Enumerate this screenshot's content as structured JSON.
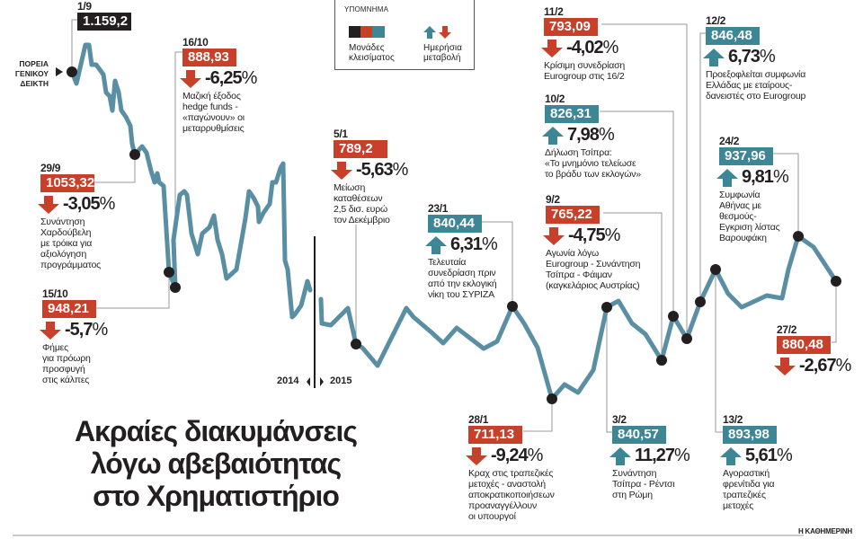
{
  "title": [
    "Ακραίες διακυμάνσεις",
    "λόγω αβεβαιότητας",
    "στο Χρηματιστήριο"
  ],
  "index_label": [
    "ΠΟΡΕΙΑ",
    "ΓΕΝΙΚΟΥ",
    "ΔΕΙΚΤΗ"
  ],
  "legend": {
    "heading": "ΥΠΟΜΝΗΜΑ",
    "units_label": [
      "Μονάδες",
      "κλεισίματος"
    ],
    "change_label": [
      "Ημερήσια",
      "μεταβολή"
    ],
    "swatches": [
      "#231f20",
      "#c8402a",
      "#3c8696"
    ]
  },
  "year_labels": {
    "left": "2014",
    "right": "2015"
  },
  "brand": "Η ΚΑΘΗΜΕΡΙΝΗ",
  "colors": {
    "up": "#3c8696",
    "down": "#c8402a",
    "neutral": "#231f20",
    "line": "#5a8fa3"
  },
  "chart_data": {
    "type": "line",
    "title": "Ακραίες διακυμάνσεις λόγω αβεβαιότητας στο Χρηματιστήριο",
    "series_label": "ΠΟΡΕΙΑ ΓΕΝΙΚΟΥ ΔΕΙΚΤΗ",
    "x_range": [
      "1/9/2014",
      "27/2/2015"
    ],
    "axes_shown": false,
    "grid": false,
    "annotations": [
      {
        "date": "1/9",
        "value": "1.159,2",
        "change": null,
        "direction": "neutral",
        "text": []
      },
      {
        "date": "29/9",
        "value": "1053,32",
        "change": "-3,05",
        "direction": "down",
        "text": [
          "Συνάντηση",
          "Χαρδούβελη",
          "με τρόικα για",
          "αξιολόγηση",
          "προγράμματος"
        ]
      },
      {
        "date": "15/10",
        "value": "948,21",
        "change": "-5,7",
        "direction": "down",
        "text": [
          "Φήμες",
          "για πρόωρη",
          "προσφυγή",
          "στις κάλπες"
        ]
      },
      {
        "date": "16/10",
        "value": "888,93",
        "change": "-6,25",
        "direction": "down",
        "text": [
          "Μαζική έξοδος",
          "hedge funds -",
          "«παγώνουν» οι",
          "μεταρρυθμίσεις"
        ]
      },
      {
        "date": "5/1",
        "value": "789,2",
        "change": "-5,63",
        "direction": "down",
        "text": [
          "Μείωση",
          "καταθέσεων",
          "2,5 δισ. ευρώ",
          "τον Δεκέμβριο"
        ]
      },
      {
        "date": "23/1",
        "value": "840,44",
        "change": "6,31",
        "direction": "up",
        "text": [
          "Τελευταία",
          "συνεδρίαση πριν",
          "από την εκλογική",
          "νίκη του ΣΥΡΙΖΑ"
        ]
      },
      {
        "date": "28/1",
        "value": "711,13",
        "change": "-9,24",
        "direction": "down",
        "text": [
          "Κραχ στις τραπεζικές",
          "μετοχές - αναστολή",
          "αποκρατικοποιήσεων",
          "προαναγγέλλουν",
          "οι υπουργοί"
        ]
      },
      {
        "date": "3/2",
        "value": "840,57",
        "change": "11,27",
        "direction": "up",
        "text": [
          "Συνάντηση",
          "Τσίπρα - Ρέντσι",
          "στη Ρώμη"
        ]
      },
      {
        "date": "9/2",
        "value": "765,22",
        "change": "-4,75",
        "direction": "down",
        "text": [
          "Αγωνία λόγω",
          "Eurogroup - Συνάντηση",
          "Τσίπρα - Φάιμαν",
          "(καγκελάριος Αυστρίας)"
        ]
      },
      {
        "date": "10/2",
        "value": "826,31",
        "change": "7,98",
        "direction": "up",
        "text": [
          "Δήλωση Τσίπρα:",
          "«Το μνημόνιο τελείωσε",
          "το βράδυ των εκλογών»"
        ]
      },
      {
        "date": "11/2",
        "value": "793,09",
        "change": "-4,02",
        "direction": "down",
        "text": [
          "Κρίσιμη συνεδρίαση",
          "Eurogroup στις 16/2"
        ]
      },
      {
        "date": "12/2",
        "value": "846,48",
        "change": "6,73",
        "direction": "up",
        "text": [
          "Προεξοφλείται συμφωνία",
          "Ελλάδας με εταίρους-",
          "δανειστές στο Eurogroup"
        ]
      },
      {
        "date": "13/2",
        "value": "893,98",
        "change": "5,61",
        "direction": "up",
        "text": [
          "Αγοραστική",
          "φρενίτιδα για",
          "τραπεζικές",
          "μετοχές"
        ]
      },
      {
        "date": "24/2",
        "value": "937,96",
        "change": "9,81",
        "direction": "up",
        "text": [
          "Συμφωνία",
          "Αθήνας με",
          "θεσμούς-",
          "Εγκριση λίστας",
          "Βαρουφάκη"
        ]
      },
      {
        "date": "27/2",
        "value": "880,48",
        "change": "-2,67",
        "direction": "down",
        "text": []
      }
    ]
  }
}
